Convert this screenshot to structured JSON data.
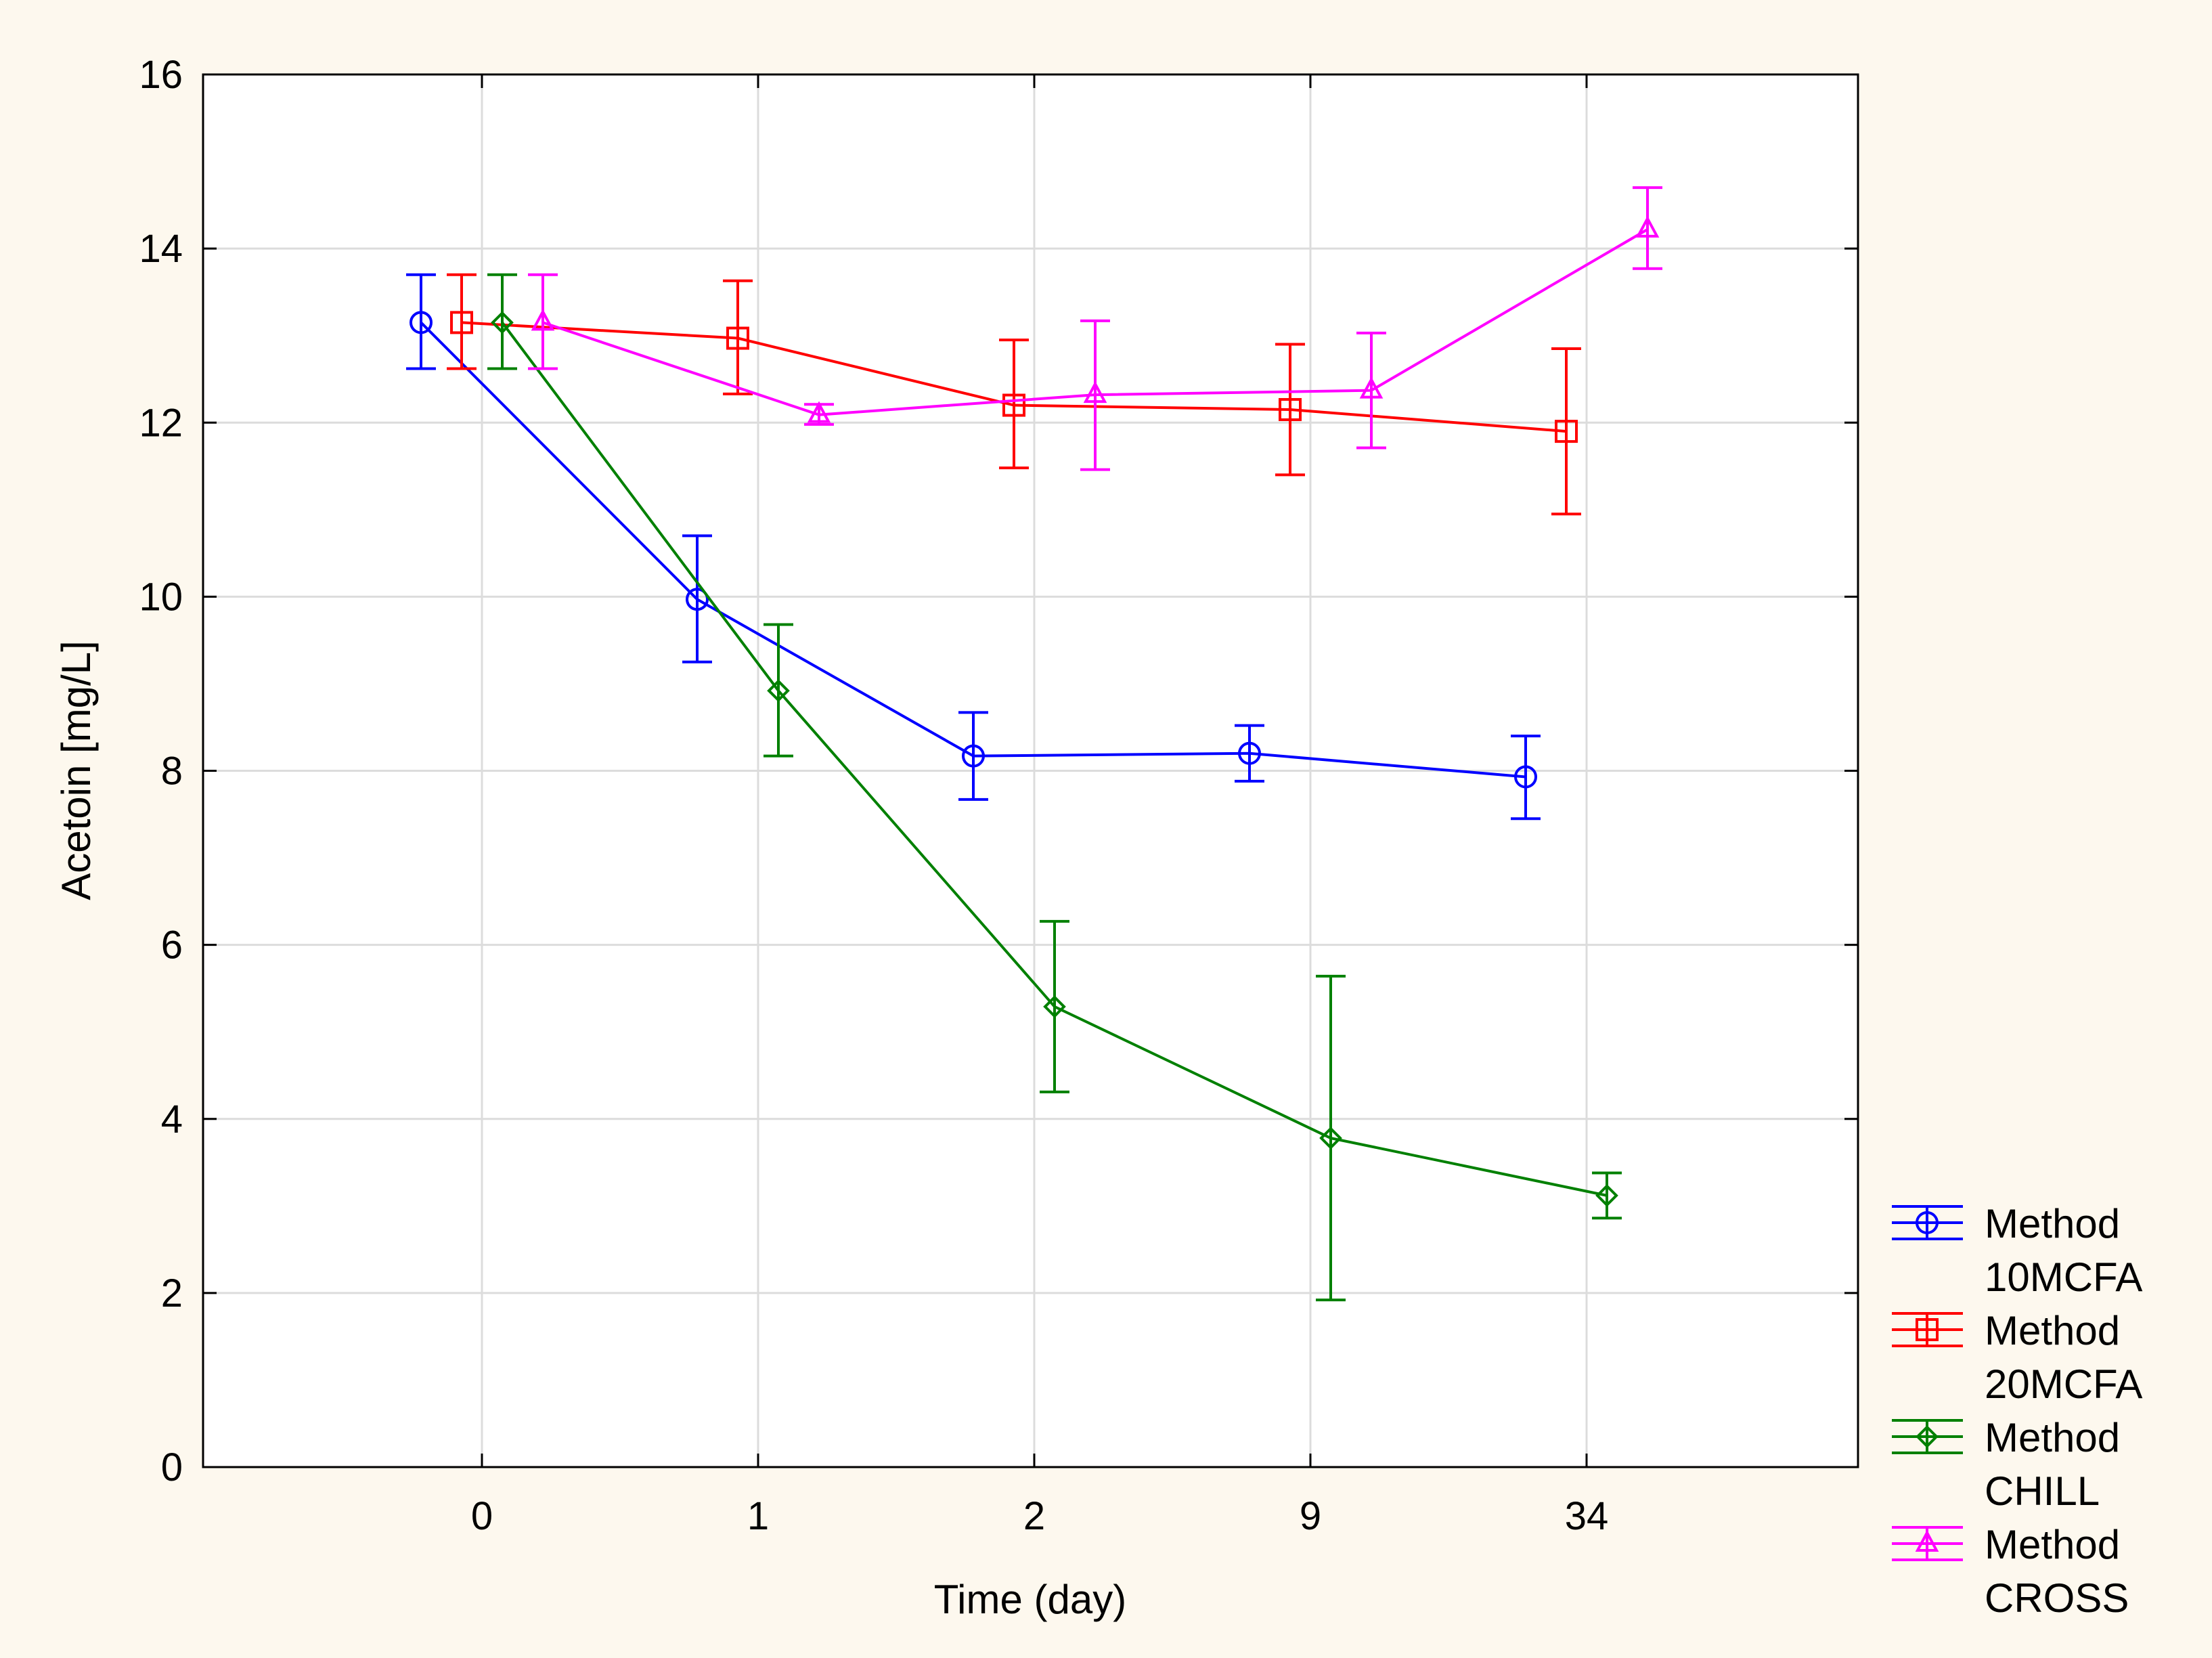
{
  "chart_data": {
    "type": "line",
    "title": "",
    "xlabel": "Time (day)",
    "ylabel": "Acetoin [mg/L]",
    "categories": [
      "0",
      "1",
      "2",
      "9",
      "34"
    ],
    "ylim": [
      0,
      16
    ],
    "yticks": [
      0,
      2,
      4,
      6,
      8,
      10,
      12,
      14,
      16
    ],
    "grid": true,
    "legend_position": "bottom-right-outside",
    "series": [
      {
        "name": "Method 10MCFA",
        "legend_lines": [
          "Method",
          "10MCFA"
        ],
        "color": "#0000ff",
        "marker": "circle",
        "values": [
          13.15,
          9.97,
          8.17,
          8.2,
          7.93
        ],
        "error_low": [
          12.62,
          9.25,
          7.67,
          7.88,
          7.45
        ],
        "error_high": [
          13.7,
          10.7,
          8.67,
          8.52,
          8.4
        ]
      },
      {
        "name": "Method 20MCFA",
        "legend_lines": [
          "Method",
          "20MCFA"
        ],
        "color": "#ff0000",
        "marker": "square",
        "values": [
          13.15,
          12.97,
          12.2,
          12.15,
          11.9
        ],
        "error_low": [
          12.62,
          12.33,
          11.48,
          11.4,
          10.95
        ],
        "error_high": [
          13.7,
          13.63,
          12.95,
          12.9,
          12.85
        ]
      },
      {
        "name": "Method CHILL",
        "legend_lines": [
          "Method",
          "CHILL"
        ],
        "color": "#008000",
        "marker": "diamond",
        "values": [
          13.15,
          8.92,
          5.29,
          3.78,
          3.12
        ],
        "error_low": [
          12.62,
          8.17,
          4.31,
          1.92,
          2.86
        ],
        "error_high": [
          13.7,
          9.68,
          6.27,
          5.64,
          3.38
        ]
      },
      {
        "name": "Method CROSS",
        "legend_lines": [
          "Method",
          "CROSS"
        ],
        "color": "#ff00ff",
        "marker": "triangle",
        "values": [
          13.15,
          12.09,
          12.32,
          12.37,
          14.22
        ],
        "error_low": [
          12.62,
          11.98,
          11.46,
          11.71,
          13.77
        ],
        "error_high": [
          13.7,
          12.21,
          13.17,
          13.03,
          14.7
        ]
      }
    ]
  }
}
